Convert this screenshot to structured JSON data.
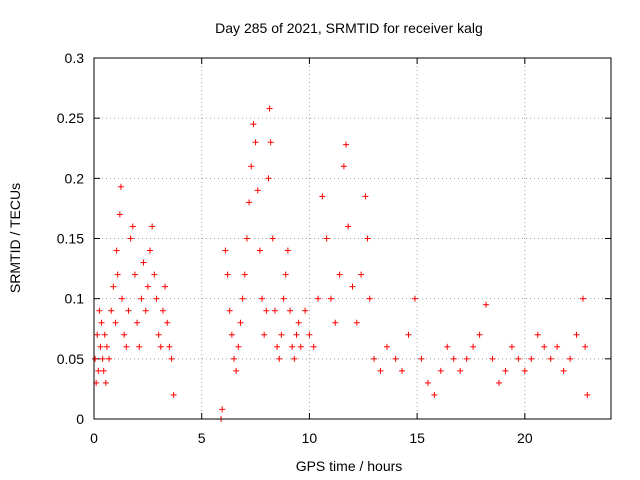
{
  "chart_data": {
    "type": "scatter",
    "title": "Day 285 of 2021, SRMTID for receiver kalg",
    "xlabel": "GPS time / hours",
    "ylabel": "SRMTID / TECUs",
    "xlim": [
      0,
      24
    ],
    "ylim": [
      0,
      0.3
    ],
    "x_ticks": [
      0,
      5,
      10,
      15,
      20
    ],
    "x_tick_labels": [
      "0",
      "5",
      "10",
      "15",
      "20"
    ],
    "y_ticks": [
      0,
      0.05,
      0.1,
      0.15,
      0.2,
      0.25,
      0.3
    ],
    "y_tick_labels": [
      "0",
      "0.05",
      "0.1",
      "0.15",
      "0.2",
      "0.25",
      "0.3"
    ],
    "grid": true,
    "marker": "plus",
    "color": "#ff0000",
    "series": [
      {
        "name": "SRMTID",
        "points": [
          [
            0.05,
            0.05
          ],
          [
            0.1,
            0.03
          ],
          [
            0.15,
            0.07
          ],
          [
            0.2,
            0.04
          ],
          [
            0.25,
            0.09
          ],
          [
            0.3,
            0.06
          ],
          [
            0.35,
            0.08
          ],
          [
            0.4,
            0.05
          ],
          [
            0.45,
            0.04
          ],
          [
            0.5,
            0.07
          ],
          [
            0.55,
            0.03
          ],
          [
            0.6,
            0.06
          ],
          [
            0.7,
            0.05
          ],
          [
            0.8,
            0.09
          ],
          [
            0.9,
            0.11
          ],
          [
            1.0,
            0.08
          ],
          [
            1.05,
            0.14
          ],
          [
            1.1,
            0.12
          ],
          [
            1.2,
            0.17
          ],
          [
            1.25,
            0.193
          ],
          [
            1.3,
            0.1
          ],
          [
            1.4,
            0.07
          ],
          [
            1.5,
            0.06
          ],
          [
            1.6,
            0.09
          ],
          [
            1.7,
            0.15
          ],
          [
            1.8,
            0.16
          ],
          [
            1.9,
            0.12
          ],
          [
            2.0,
            0.08
          ],
          [
            2.1,
            0.06
          ],
          [
            2.2,
            0.1
          ],
          [
            2.3,
            0.13
          ],
          [
            2.4,
            0.09
          ],
          [
            2.5,
            0.11
          ],
          [
            2.6,
            0.14
          ],
          [
            2.7,
            0.16
          ],
          [
            2.8,
            0.12
          ],
          [
            2.9,
            0.1
          ],
          [
            3.0,
            0.07
          ],
          [
            3.1,
            0.06
          ],
          [
            3.2,
            0.09
          ],
          [
            3.3,
            0.11
          ],
          [
            3.4,
            0.08
          ],
          [
            3.5,
            0.06
          ],
          [
            3.6,
            0.05
          ],
          [
            3.7,
            0.02
          ],
          [
            5.9,
            0.0
          ],
          [
            5.95,
            0.008
          ],
          [
            6.1,
            0.14
          ],
          [
            6.2,
            0.12
          ],
          [
            6.3,
            0.09
          ],
          [
            6.4,
            0.07
          ],
          [
            6.5,
            0.05
          ],
          [
            6.6,
            0.04
          ],
          [
            6.7,
            0.06
          ],
          [
            6.8,
            0.08
          ],
          [
            6.9,
            0.1
          ],
          [
            7.0,
            0.12
          ],
          [
            7.1,
            0.15
          ],
          [
            7.2,
            0.18
          ],
          [
            7.3,
            0.21
          ],
          [
            7.4,
            0.245
          ],
          [
            7.5,
            0.23
          ],
          [
            7.6,
            0.19
          ],
          [
            7.7,
            0.14
          ],
          [
            7.8,
            0.1
          ],
          [
            7.9,
            0.07
          ],
          [
            8.0,
            0.09
          ],
          [
            8.1,
            0.2
          ],
          [
            8.15,
            0.258
          ],
          [
            8.2,
            0.23
          ],
          [
            8.3,
            0.15
          ],
          [
            8.4,
            0.09
          ],
          [
            8.5,
            0.06
          ],
          [
            8.6,
            0.05
          ],
          [
            8.7,
            0.07
          ],
          [
            8.8,
            0.1
          ],
          [
            8.9,
            0.12
          ],
          [
            9.0,
            0.14
          ],
          [
            9.1,
            0.09
          ],
          [
            9.2,
            0.06
          ],
          [
            9.3,
            0.05
          ],
          [
            9.4,
            0.07
          ],
          [
            9.5,
            0.08
          ],
          [
            9.6,
            0.06
          ],
          [
            9.8,
            0.09
          ],
          [
            10.0,
            0.07
          ],
          [
            10.2,
            0.06
          ],
          [
            10.4,
            0.1
          ],
          [
            10.6,
            0.185
          ],
          [
            10.8,
            0.15
          ],
          [
            11.0,
            0.1
          ],
          [
            11.2,
            0.08
          ],
          [
            11.4,
            0.12
          ],
          [
            11.6,
            0.21
          ],
          [
            11.7,
            0.228
          ],
          [
            11.8,
            0.16
          ],
          [
            12.0,
            0.11
          ],
          [
            12.2,
            0.08
          ],
          [
            12.4,
            0.12
          ],
          [
            12.6,
            0.185
          ],
          [
            12.7,
            0.15
          ],
          [
            12.8,
            0.1
          ],
          [
            13.0,
            0.05
          ],
          [
            13.3,
            0.04
          ],
          [
            13.6,
            0.06
          ],
          [
            14.0,
            0.05
          ],
          [
            14.3,
            0.04
          ],
          [
            14.6,
            0.07
          ],
          [
            14.9,
            0.1
          ],
          [
            15.2,
            0.05
          ],
          [
            15.5,
            0.03
          ],
          [
            15.8,
            0.02
          ],
          [
            16.1,
            0.04
          ],
          [
            16.4,
            0.06
          ],
          [
            16.7,
            0.05
          ],
          [
            17.0,
            0.04
          ],
          [
            17.3,
            0.05
          ],
          [
            17.6,
            0.06
          ],
          [
            17.9,
            0.07
          ],
          [
            18.2,
            0.095
          ],
          [
            18.5,
            0.05
          ],
          [
            18.8,
            0.03
          ],
          [
            19.1,
            0.04
          ],
          [
            19.4,
            0.06
          ],
          [
            19.7,
            0.05
          ],
          [
            20.0,
            0.04
          ],
          [
            20.3,
            0.05
          ],
          [
            20.6,
            0.07
          ],
          [
            20.9,
            0.06
          ],
          [
            21.2,
            0.05
          ],
          [
            21.5,
            0.06
          ],
          [
            21.8,
            0.04
          ],
          [
            22.1,
            0.05
          ],
          [
            22.4,
            0.07
          ],
          [
            22.7,
            0.1
          ],
          [
            22.8,
            0.06
          ],
          [
            22.9,
            0.02
          ]
        ]
      }
    ]
  }
}
